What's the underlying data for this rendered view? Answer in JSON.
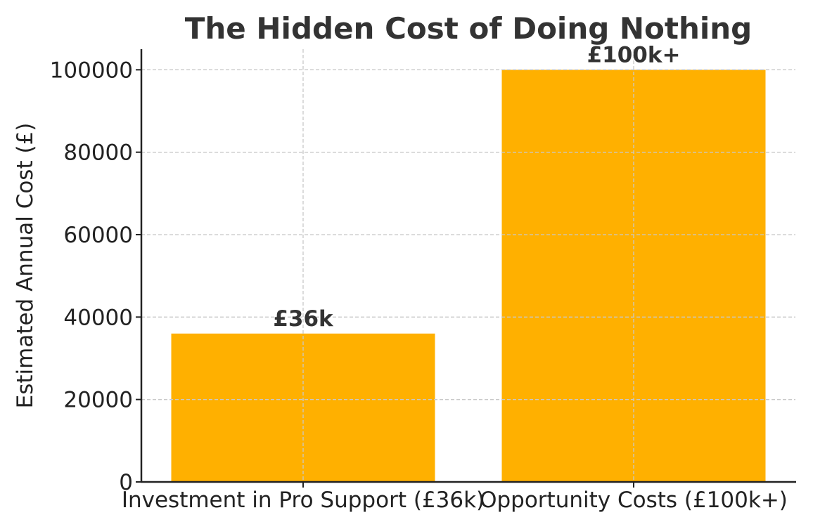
{
  "chart_data": {
    "type": "bar",
    "title": "The Hidden Cost of Doing Nothing",
    "xlabel": "",
    "ylabel": "Estimated Annual Cost (£)",
    "categories": [
      "Investment in Pro Support (£36k)",
      "Opportunity Costs (£100k+)"
    ],
    "values": [
      36000,
      100000
    ],
    "data_labels": [
      "£36k",
      "£100k+"
    ],
    "ylim": [
      0,
      105000
    ],
    "yticks": [
      0,
      20000,
      40000,
      60000,
      80000,
      100000
    ],
    "ytick_labels": [
      "0",
      "20000",
      "40000",
      "60000",
      "80000",
      "100000"
    ],
    "grid": true,
    "bar_color": "#FFB000",
    "text_color": "#333333"
  }
}
